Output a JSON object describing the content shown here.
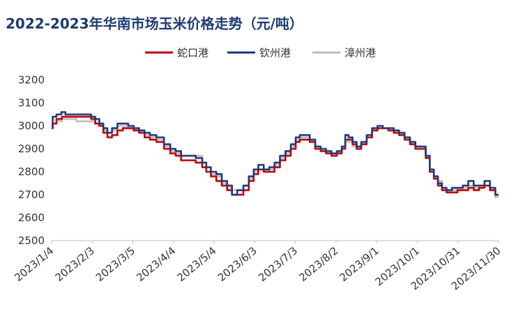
{
  "chart_data": {
    "type": "line",
    "title": "2022-2023年华南市场玉米价格走势（元/吨）",
    "ylim": [
      2500,
      3200
    ],
    "yticks": [
      2500,
      2600,
      2700,
      2800,
      2900,
      3000,
      3100,
      3200
    ],
    "grid": false,
    "legend_position": "top",
    "x_range": [
      "2023/1/4",
      "2023/11/30"
    ],
    "xtick_labels": [
      "2023/1/4",
      "2023/2/3",
      "2023/3/5",
      "2023/4/4",
      "2023/5/4",
      "2023/6/3",
      "2023/7/3",
      "2023/8/2",
      "2023/9/1",
      "2023/10/1",
      "2023/10/31",
      "2023/11/30"
    ],
    "series": [
      {
        "name": "蛇口港",
        "color": "#c00000",
        "points": [
          [
            "2023/1/4",
            2990
          ],
          [
            "2023/1/6",
            3010
          ],
          [
            "2023/1/10",
            3030
          ],
          [
            "2023/1/14",
            3040
          ],
          [
            "2023/1/20",
            3040
          ],
          [
            "2023/1/26",
            3040
          ],
          [
            "2023/2/1",
            3040
          ],
          [
            "2023/2/4",
            3030
          ],
          [
            "2023/2/7",
            3010
          ],
          [
            "2023/2/10",
            3000
          ],
          [
            "2023/2/13",
            2970
          ],
          [
            "2023/2/16",
            2950
          ],
          [
            "2023/2/20",
            2960
          ],
          [
            "2023/2/24",
            2980
          ],
          [
            "2023/2/28",
            2990
          ],
          [
            "2023/3/4",
            2990
          ],
          [
            "2023/3/8",
            2980
          ],
          [
            "2023/3/12",
            2970
          ],
          [
            "2023/3/16",
            2950
          ],
          [
            "2023/3/20",
            2940
          ],
          [
            "2023/3/26",
            2930
          ],
          [
            "2023/3/31",
            2900
          ],
          [
            "2023/4/4",
            2880
          ],
          [
            "2023/4/8",
            2870
          ],
          [
            "2023/4/12",
            2850
          ],
          [
            "2023/4/18",
            2850
          ],
          [
            "2023/4/24",
            2840
          ],
          [
            "2023/4/27",
            2820
          ],
          [
            "2023/4/30",
            2800
          ],
          [
            "2023/5/4",
            2780
          ],
          [
            "2023/5/8",
            2760
          ],
          [
            "2023/5/12",
            2740
          ],
          [
            "2023/5/16",
            2720
          ],
          [
            "2023/5/19",
            2700
          ],
          [
            "2023/5/24",
            2700
          ],
          [
            "2023/5/28",
            2720
          ],
          [
            "2023/6/1",
            2760
          ],
          [
            "2023/6/4",
            2790
          ],
          [
            "2023/6/8",
            2810
          ],
          [
            "2023/6/12",
            2800
          ],
          [
            "2023/6/16",
            2800
          ],
          [
            "2023/6/20",
            2820
          ],
          [
            "2023/6/24",
            2850
          ],
          [
            "2023/6/28",
            2870
          ],
          [
            "2023/7/2",
            2900
          ],
          [
            "2023/7/5",
            2930
          ],
          [
            "2023/7/8",
            2940
          ],
          [
            "2023/7/12",
            2940
          ],
          [
            "2023/7/16",
            2930
          ],
          [
            "2023/7/20",
            2900
          ],
          [
            "2023/7/24",
            2890
          ],
          [
            "2023/7/28",
            2880
          ],
          [
            "2023/8/1",
            2870
          ],
          [
            "2023/8/5",
            2880
          ],
          [
            "2023/8/8",
            2900
          ],
          [
            "2023/8/10",
            2940
          ],
          [
            "2023/8/13",
            2940
          ],
          [
            "2023/8/16",
            2920
          ],
          [
            "2023/8/19",
            2900
          ],
          [
            "2023/8/23",
            2920
          ],
          [
            "2023/8/27",
            2950
          ],
          [
            "2023/8/31",
            2980
          ],
          [
            "2023/9/4",
            2990
          ],
          [
            "2023/9/8",
            2990
          ],
          [
            "2023/9/12",
            2980
          ],
          [
            "2023/9/16",
            2970
          ],
          [
            "2023/9/20",
            2960
          ],
          [
            "2023/9/24",
            2940
          ],
          [
            "2023/9/28",
            2920
          ],
          [
            "2023/10/2",
            2900
          ],
          [
            "2023/10/6",
            2900
          ],
          [
            "2023/10/9",
            2860
          ],
          [
            "2023/10/12",
            2800
          ],
          [
            "2023/10/15",
            2770
          ],
          [
            "2023/10/18",
            2740
          ],
          [
            "2023/10/21",
            2720
          ],
          [
            "2023/10/25",
            2710
          ],
          [
            "2023/10/29",
            2710
          ],
          [
            "2023/11/2",
            2720
          ],
          [
            "2023/11/6",
            2720
          ],
          [
            "2023/11/10",
            2730
          ],
          [
            "2023/11/14",
            2720
          ],
          [
            "2023/11/18",
            2730
          ],
          [
            "2023/11/22",
            2740
          ],
          [
            "2023/11/26",
            2720
          ],
          [
            "2023/11/30",
            2700
          ]
        ]
      },
      {
        "name": "钦州港",
        "color": "#1f3a7a",
        "points": [
          [
            "2023/1/4",
            3000
          ],
          [
            "2023/1/6",
            3040
          ],
          [
            "2023/1/10",
            3050
          ],
          [
            "2023/1/13",
            3060
          ],
          [
            "2023/1/16",
            3050
          ],
          [
            "2023/1/24",
            3050
          ],
          [
            "2023/2/1",
            3050
          ],
          [
            "2023/2/4",
            3040
          ],
          [
            "2023/2/7",
            3030
          ],
          [
            "2023/2/10",
            3010
          ],
          [
            "2023/2/13",
            2990
          ],
          [
            "2023/2/16",
            2970
          ],
          [
            "2023/2/20",
            2990
          ],
          [
            "2023/2/24",
            3010
          ],
          [
            "2023/2/28",
            3010
          ],
          [
            "2023/3/4",
            3000
          ],
          [
            "2023/3/8",
            2990
          ],
          [
            "2023/3/12",
            2980
          ],
          [
            "2023/3/16",
            2970
          ],
          [
            "2023/3/20",
            2960
          ],
          [
            "2023/3/26",
            2950
          ],
          [
            "2023/3/31",
            2920
          ],
          [
            "2023/4/4",
            2900
          ],
          [
            "2023/4/8",
            2890
          ],
          [
            "2023/4/12",
            2870
          ],
          [
            "2023/4/18",
            2870
          ],
          [
            "2023/4/24",
            2860
          ],
          [
            "2023/4/27",
            2840
          ],
          [
            "2023/4/30",
            2820
          ],
          [
            "2023/5/4",
            2800
          ],
          [
            "2023/5/8",
            2790
          ],
          [
            "2023/5/12",
            2760
          ],
          [
            "2023/5/16",
            2740
          ],
          [
            "2023/5/19",
            2700
          ],
          [
            "2023/5/24",
            2720
          ],
          [
            "2023/5/28",
            2740
          ],
          [
            "2023/6/1",
            2780
          ],
          [
            "2023/6/4",
            2810
          ],
          [
            "2023/6/8",
            2830
          ],
          [
            "2023/6/12",
            2810
          ],
          [
            "2023/6/16",
            2820
          ],
          [
            "2023/6/20",
            2840
          ],
          [
            "2023/6/24",
            2870
          ],
          [
            "2023/6/28",
            2890
          ],
          [
            "2023/7/2",
            2920
          ],
          [
            "2023/7/5",
            2950
          ],
          [
            "2023/7/8",
            2960
          ],
          [
            "2023/7/12",
            2960
          ],
          [
            "2023/7/16",
            2940
          ],
          [
            "2023/7/20",
            2910
          ],
          [
            "2023/7/24",
            2900
          ],
          [
            "2023/7/28",
            2890
          ],
          [
            "2023/8/1",
            2880
          ],
          [
            "2023/8/5",
            2890
          ],
          [
            "2023/8/8",
            2910
          ],
          [
            "2023/8/10",
            2960
          ],
          [
            "2023/8/13",
            2950
          ],
          [
            "2023/8/16",
            2930
          ],
          [
            "2023/8/19",
            2910
          ],
          [
            "2023/8/23",
            2930
          ],
          [
            "2023/8/27",
            2960
          ],
          [
            "2023/8/31",
            2990
          ],
          [
            "2023/9/4",
            3000
          ],
          [
            "2023/9/8",
            2990
          ],
          [
            "2023/9/12",
            2990
          ],
          [
            "2023/9/16",
            2980
          ],
          [
            "2023/9/20",
            2970
          ],
          [
            "2023/9/24",
            2950
          ],
          [
            "2023/9/28",
            2930
          ],
          [
            "2023/10/2",
            2910
          ],
          [
            "2023/10/6",
            2910
          ],
          [
            "2023/10/9",
            2870
          ],
          [
            "2023/10/12",
            2810
          ],
          [
            "2023/10/15",
            2780
          ],
          [
            "2023/10/18",
            2750
          ],
          [
            "2023/10/21",
            2730
          ],
          [
            "2023/10/25",
            2720
          ],
          [
            "2023/10/29",
            2730
          ],
          [
            "2023/11/2",
            2730
          ],
          [
            "2023/11/6",
            2740
          ],
          [
            "2023/11/10",
            2760
          ],
          [
            "2023/11/14",
            2740
          ],
          [
            "2023/11/18",
            2740
          ],
          [
            "2023/11/22",
            2760
          ],
          [
            "2023/11/26",
            2730
          ],
          [
            "2023/11/30",
            2700
          ]
        ]
      },
      {
        "name": "漳州港",
        "color": "#bfbfbf",
        "points": [
          [
            "2023/1/4",
            2990
          ],
          [
            "2023/1/6",
            3010
          ],
          [
            "2023/1/10",
            3020
          ],
          [
            "2023/1/14",
            3030
          ],
          [
            "2023/1/20",
            3030
          ],
          [
            "2023/1/26",
            3020
          ],
          [
            "2023/2/1",
            3020
          ],
          [
            "2023/2/4",
            3020
          ],
          [
            "2023/2/7",
            3010
          ],
          [
            "2023/2/10",
            3000
          ],
          [
            "2023/2/13",
            2980
          ],
          [
            "2023/2/16",
            2970
          ],
          [
            "2023/2/20",
            2980
          ],
          [
            "2023/2/24",
            3000
          ],
          [
            "2023/2/28",
            3000
          ],
          [
            "2023/3/4",
            2990
          ],
          [
            "2023/3/8",
            2980
          ],
          [
            "2023/3/12",
            2970
          ],
          [
            "2023/3/16",
            2960
          ],
          [
            "2023/3/20",
            2950
          ],
          [
            "2023/3/26",
            2940
          ],
          [
            "2023/3/31",
            2910
          ],
          [
            "2023/4/4",
            2890
          ],
          [
            "2023/4/8",
            2880
          ],
          [
            "2023/4/12",
            2870
          ],
          [
            "2023/4/18",
            2870
          ],
          [
            "2023/4/24",
            2870
          ],
          [
            "2023/4/27",
            2840
          ],
          [
            "2023/4/30",
            2820
          ],
          [
            "2023/5/4",
            2790
          ],
          [
            "2023/5/8",
            2780
          ],
          [
            "2023/5/12",
            2750
          ],
          [
            "2023/5/16",
            2730
          ],
          [
            "2023/5/19",
            2720
          ],
          [
            "2023/5/24",
            2720
          ],
          [
            "2023/5/28",
            2740
          ],
          [
            "2023/6/1",
            2770
          ],
          [
            "2023/6/4",
            2800
          ],
          [
            "2023/6/8",
            2810
          ],
          [
            "2023/6/12",
            2800
          ],
          [
            "2023/6/16",
            2810
          ],
          [
            "2023/6/20",
            2830
          ],
          [
            "2023/6/24",
            2860
          ],
          [
            "2023/6/28",
            2880
          ],
          [
            "2023/7/2",
            2910
          ],
          [
            "2023/7/5",
            2940
          ],
          [
            "2023/7/8",
            2950
          ],
          [
            "2023/7/12",
            2950
          ],
          [
            "2023/7/16",
            2930
          ],
          [
            "2023/7/20",
            2910
          ],
          [
            "2023/7/24",
            2900
          ],
          [
            "2023/7/28",
            2890
          ],
          [
            "2023/8/1",
            2880
          ],
          [
            "2023/8/5",
            2890
          ],
          [
            "2023/8/8",
            2900
          ],
          [
            "2023/8/10",
            2930
          ],
          [
            "2023/8/13",
            2930
          ],
          [
            "2023/8/16",
            2910
          ],
          [
            "2023/8/19",
            2900
          ],
          [
            "2023/8/23",
            2920
          ],
          [
            "2023/8/27",
            2950
          ],
          [
            "2023/8/31",
            2980
          ],
          [
            "2023/9/4",
            2990
          ],
          [
            "2023/9/8",
            2990
          ],
          [
            "2023/9/12",
            2980
          ],
          [
            "2023/9/16",
            2980
          ],
          [
            "2023/9/20",
            2960
          ],
          [
            "2023/9/24",
            2950
          ],
          [
            "2023/9/28",
            2920
          ],
          [
            "2023/10/2",
            2900
          ],
          [
            "2023/10/6",
            2900
          ],
          [
            "2023/10/9",
            2860
          ],
          [
            "2023/10/12",
            2810
          ],
          [
            "2023/10/15",
            2780
          ],
          [
            "2023/10/18",
            2760
          ],
          [
            "2023/10/21",
            2730
          ],
          [
            "2023/10/25",
            2720
          ],
          [
            "2023/10/29",
            2720
          ],
          [
            "2023/11/2",
            2730
          ],
          [
            "2023/11/6",
            2730
          ],
          [
            "2023/11/10",
            2740
          ],
          [
            "2023/11/14",
            2730
          ],
          [
            "2023/11/18",
            2740
          ],
          [
            "2023/11/22",
            2740
          ],
          [
            "2023/11/26",
            2720
          ],
          [
            "2023/11/30",
            2690
          ]
        ]
      }
    ]
  }
}
